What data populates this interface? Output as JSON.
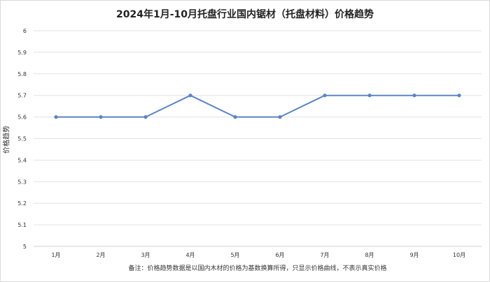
{
  "chart_data": {
    "type": "line",
    "title": "2024年1月-10月托盘行业国内锯材（托盘材料）价格趋势",
    "xlabel": "",
    "ylabel": "价格趋势",
    "categories": [
      "1月",
      "2月",
      "3月",
      "4月",
      "5月",
      "6月",
      "7月",
      "8月",
      "9月",
      "10月"
    ],
    "series": [
      {
        "values": [
          5.6,
          5.6,
          5.6,
          5.7,
          5.6,
          5.6,
          5.7,
          5.7,
          5.7,
          5.7
        ]
      }
    ],
    "ylim": [
      5,
      6
    ],
    "yticks": [
      "5",
      "5.1",
      "5.2",
      "5.3",
      "5.4",
      "5.5",
      "5.6",
      "5.7",
      "5.8",
      "5.9",
      "6"
    ],
    "grid": true,
    "legend": "none",
    "note": "备注：价格趋势数据是以国内木材的价格为基数换算所得，只显示价格曲线，不表示真实价格",
    "colors": {
      "line": "#5b84c4",
      "grid": "#e3e3e3",
      "axis": "#d0d0d0"
    }
  }
}
